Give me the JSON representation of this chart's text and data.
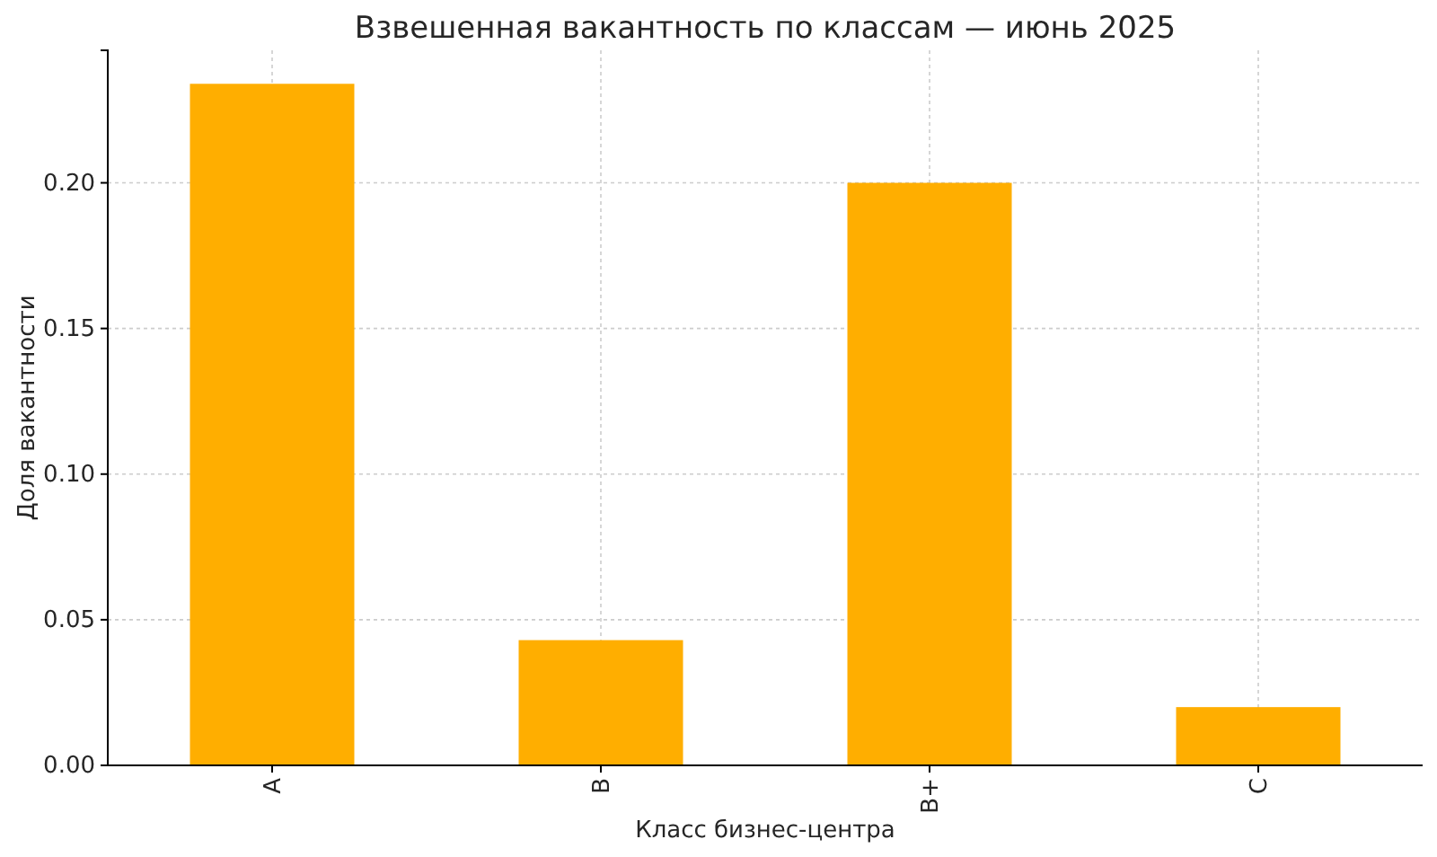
{
  "chart_data": {
    "type": "bar",
    "title": "Взвешенная вакантность по классам — июнь 2025",
    "xlabel": "Класс бизнес-центра",
    "ylabel": "Доля вакантности",
    "categories": [
      "A",
      "B",
      "B+",
      "C"
    ],
    "values": [
      0.234,
      0.043,
      0.2,
      0.02
    ],
    "color": "#ffae00",
    "ylim": [
      0,
      0.2455
    ],
    "yticks": [
      {
        "value": 0,
        "label": "0.00"
      },
      {
        "value": 0.05,
        "label": "0.05"
      },
      {
        "value": 0.1,
        "label": "0.10"
      },
      {
        "value": 0.15,
        "label": "0.15"
      },
      {
        "value": 0.2,
        "label": "0.20"
      }
    ],
    "grid": true
  }
}
